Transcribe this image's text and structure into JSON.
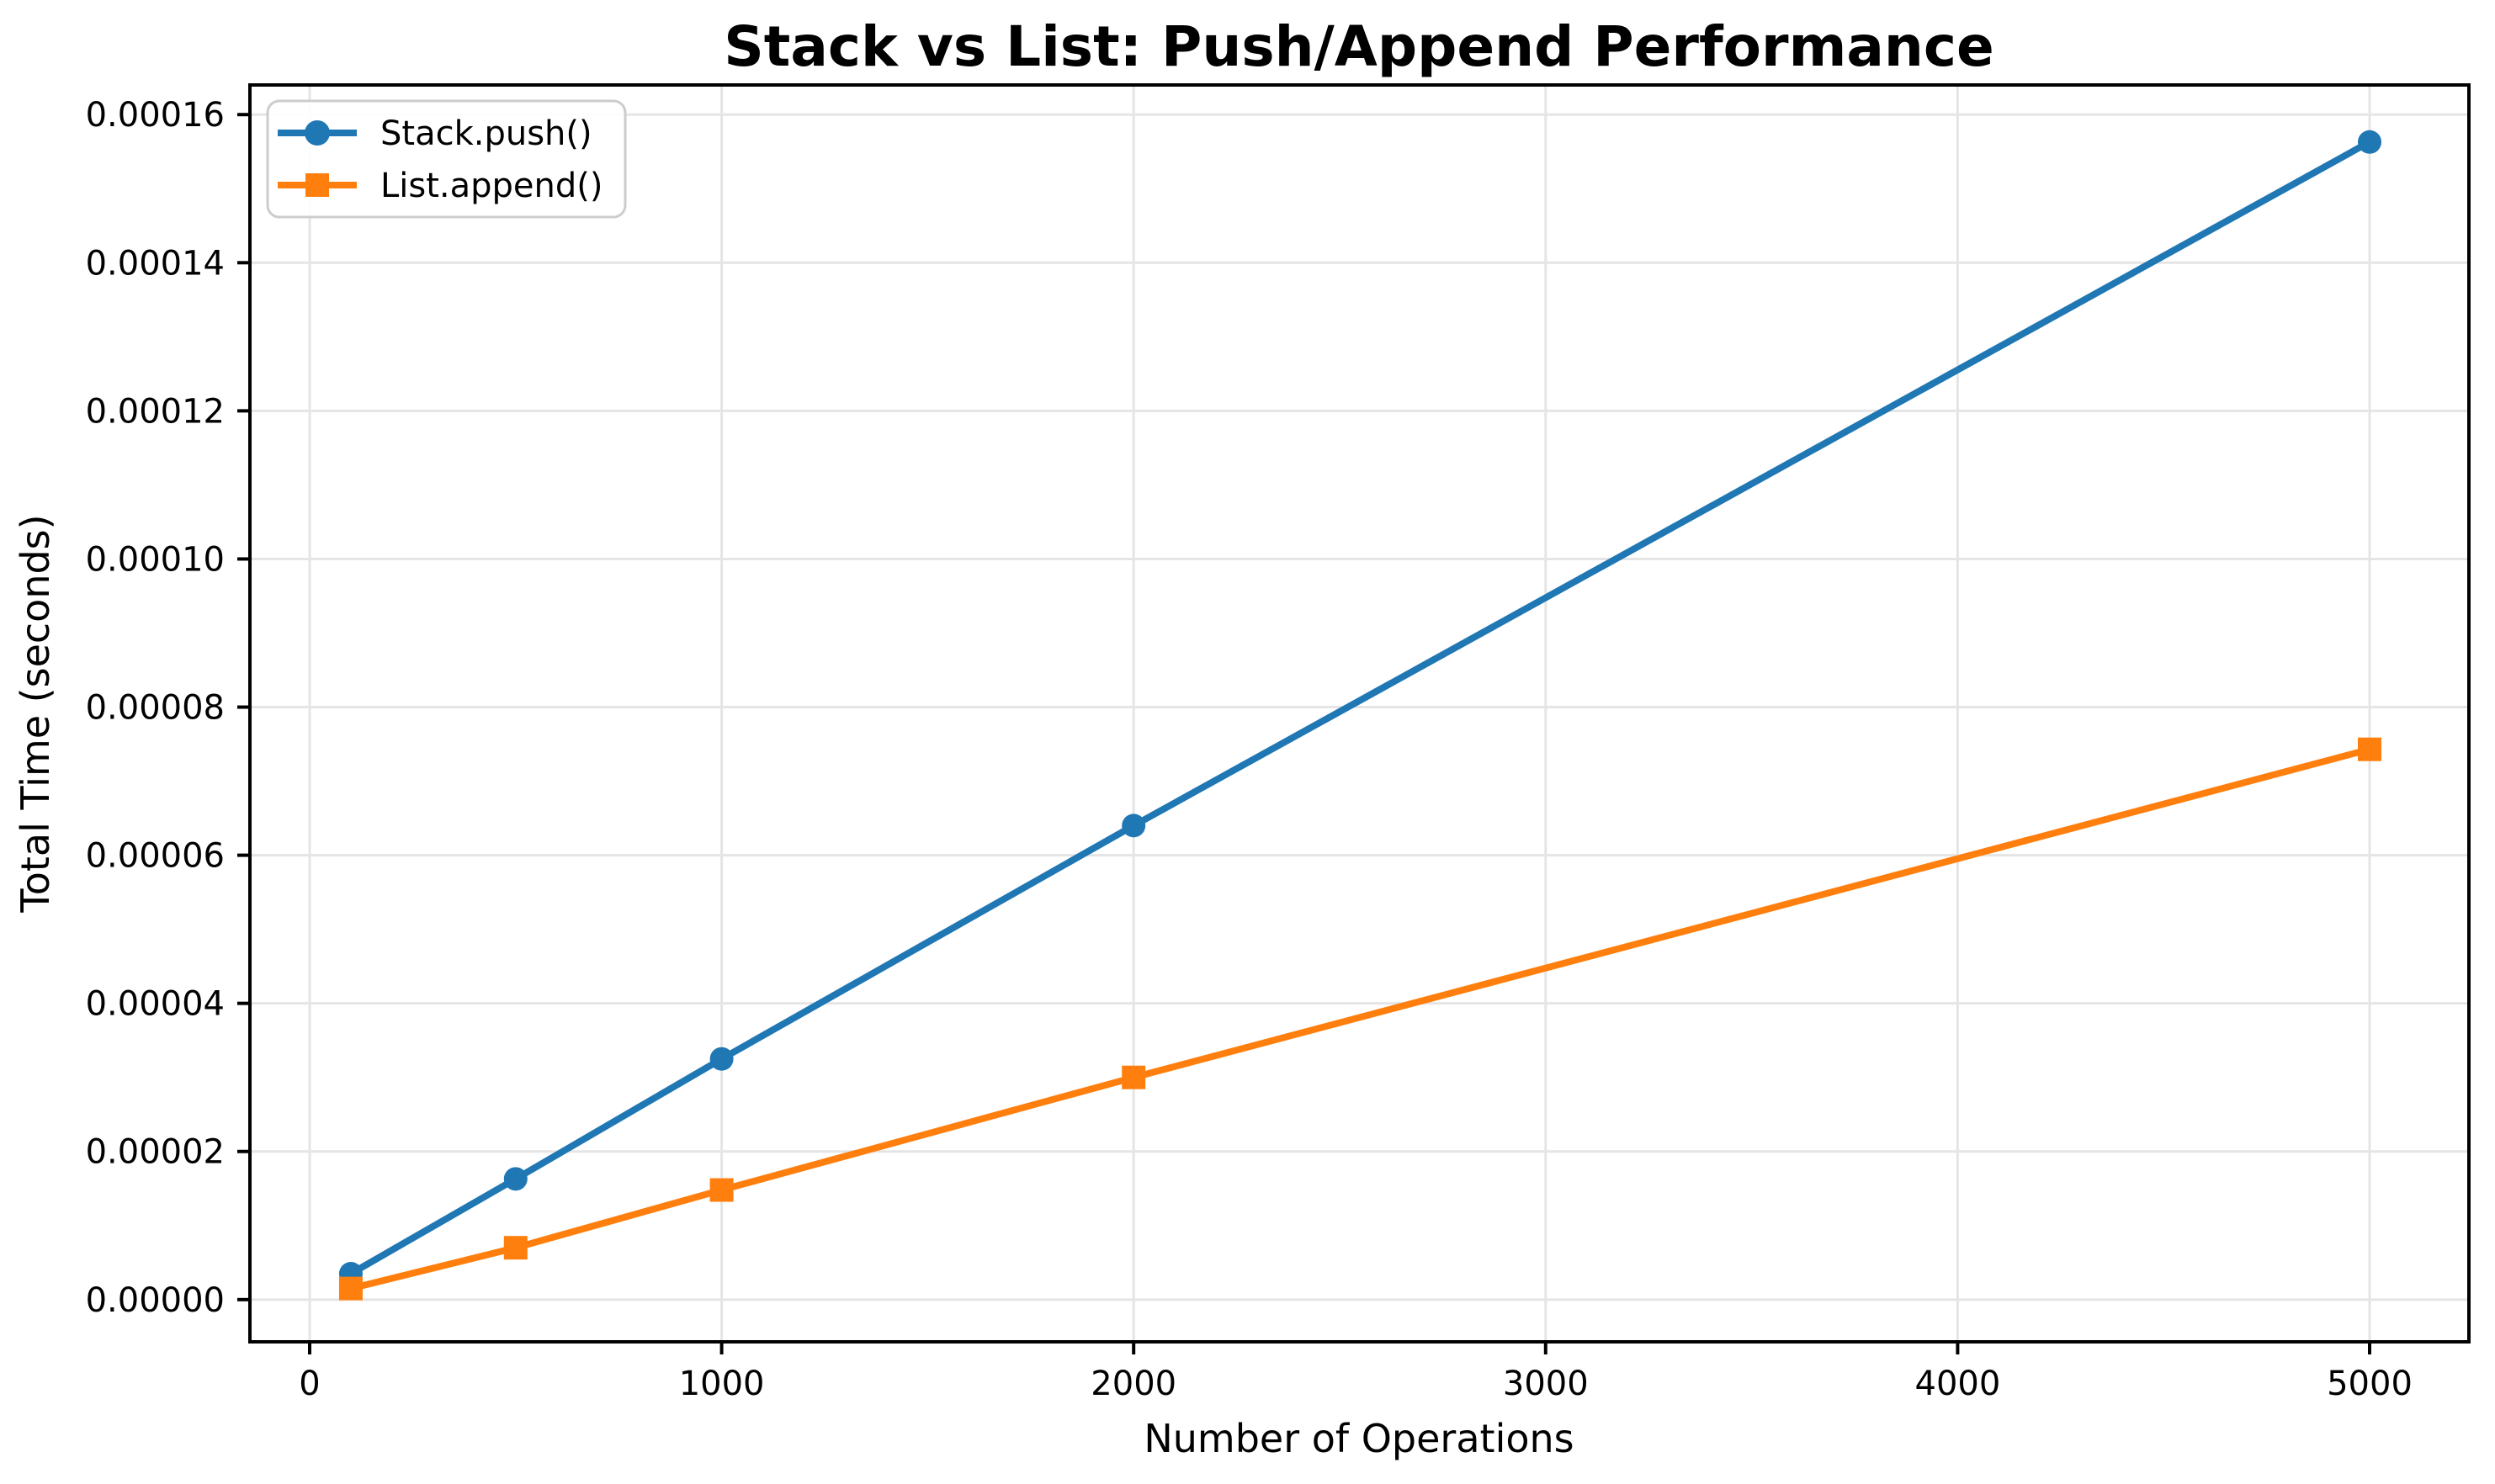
{
  "chart_data": {
    "type": "line",
    "title": "Stack vs List: Push/Append Performance",
    "xlabel": "Number of Operations",
    "ylabel": "Total Time (seconds)",
    "x": [
      100,
      500,
      1000,
      2000,
      5000
    ],
    "series": [
      {
        "name": "Stack.push()",
        "color": "#1f77b4",
        "marker": "circle",
        "values": [
          3.5e-06,
          1.63e-05,
          3.25e-05,
          6.4e-05,
          0.0001563
        ]
      },
      {
        "name": "List.append()",
        "color": "#ff7f0e",
        "marker": "square",
        "values": [
          1.5e-06,
          7e-06,
          1.48e-05,
          3e-05,
          7.43e-05
        ]
      }
    ],
    "xlim": [
      -145,
      5241
    ],
    "ylim": [
      -5.7e-06,
      0.000164
    ],
    "xticks": [
      0,
      1000,
      2000,
      3000,
      4000,
      5000
    ],
    "xtick_labels": [
      "0",
      "1000",
      "2000",
      "3000",
      "4000",
      "5000"
    ],
    "yticks": [
      0,
      2e-05,
      4e-05,
      6e-05,
      8e-05,
      0.0001,
      0.00012,
      0.00014,
      0.00016
    ],
    "ytick_labels": [
      "0.00000",
      "0.00002",
      "0.00004",
      "0.00006",
      "0.00008",
      "0.00010",
      "0.00012",
      "0.00014",
      "0.00016"
    ],
    "grid": true,
    "legend": {
      "position": "upper-left",
      "entries": [
        "Stack.push()",
        "List.append()"
      ]
    },
    "colors": {
      "grid": "#e5e5e5",
      "spine": "#000000",
      "text": "#000000",
      "background": "#ffffff",
      "legend_border": "#cccccc"
    }
  }
}
